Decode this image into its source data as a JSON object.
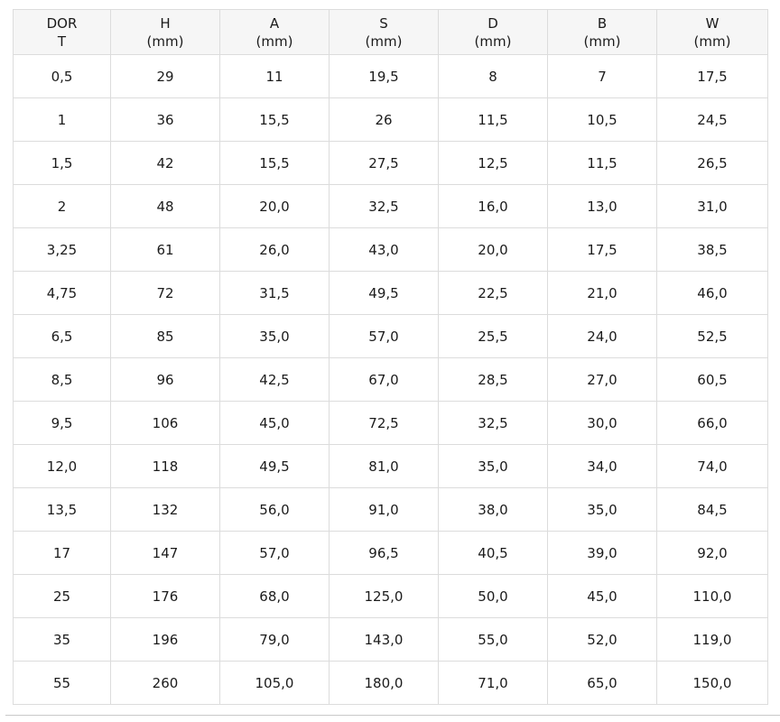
{
  "colors": {
    "header_bg": "#f6f6f6",
    "border": "#dcdcdc",
    "bottom_rule": "#c9c9c9",
    "text": "#1b1b1b"
  },
  "chart_data": {
    "type": "table",
    "columns": [
      {
        "label": "DOR",
        "unit": "T"
      },
      {
        "label": "H",
        "unit": "(mm)"
      },
      {
        "label": "A",
        "unit": "(mm)"
      },
      {
        "label": "S",
        "unit": "(mm)"
      },
      {
        "label": "D",
        "unit": "(mm)"
      },
      {
        "label": "B",
        "unit": "(mm)"
      },
      {
        "label": "W",
        "unit": "(mm)"
      }
    ],
    "rows": [
      [
        "0,5",
        "29",
        "11",
        "19,5",
        "8",
        "7",
        "17,5"
      ],
      [
        "1",
        "36",
        "15,5",
        "26",
        "11,5",
        "10,5",
        "24,5"
      ],
      [
        "1,5",
        "42",
        "15,5",
        "27,5",
        "12,5",
        "11,5",
        "26,5"
      ],
      [
        "2",
        "48",
        "20,0",
        "32,5",
        "16,0",
        "13,0",
        "31,0"
      ],
      [
        "3,25",
        "61",
        "26,0",
        "43,0",
        "20,0",
        "17,5",
        "38,5"
      ],
      [
        "4,75",
        "72",
        "31,5",
        "49,5",
        "22,5",
        "21,0",
        "46,0"
      ],
      [
        "6,5",
        "85",
        "35,0",
        "57,0",
        "25,5",
        "24,0",
        "52,5"
      ],
      [
        "8,5",
        "96",
        "42,5",
        "67,0",
        "28,5",
        "27,0",
        "60,5"
      ],
      [
        "9,5",
        "106",
        "45,0",
        "72,5",
        "32,5",
        "30,0",
        "66,0"
      ],
      [
        "12,0",
        "118",
        "49,5",
        "81,0",
        "35,0",
        "34,0",
        "74,0"
      ],
      [
        "13,5",
        "132",
        "56,0",
        "91,0",
        "38,0",
        "35,0",
        "84,5"
      ],
      [
        "17",
        "147",
        "57,0",
        "96,5",
        "40,5",
        "39,0",
        "92,0"
      ],
      [
        "25",
        "176",
        "68,0",
        "125,0",
        "50,0",
        "45,0",
        "110,0"
      ],
      [
        "35",
        "196",
        "79,0",
        "143,0",
        "55,0",
        "52,0",
        "119,0"
      ],
      [
        "55",
        "260",
        "105,0",
        "180,0",
        "71,0",
        "65,0",
        "150,0"
      ]
    ]
  }
}
